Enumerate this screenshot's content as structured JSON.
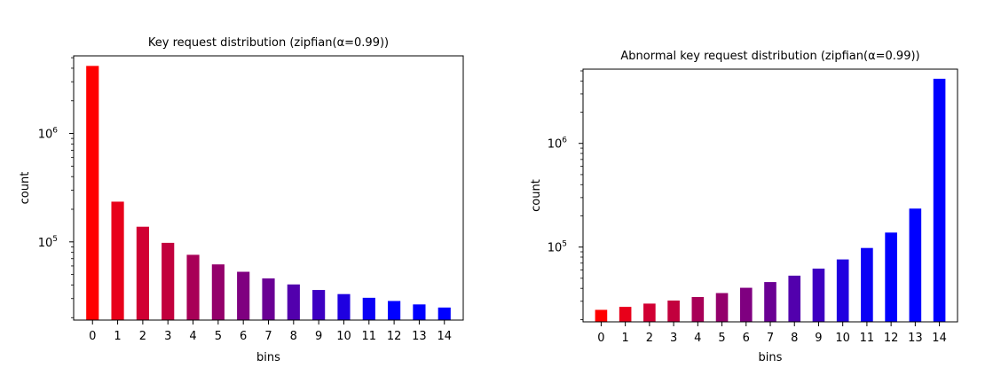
{
  "chart_data": [
    {
      "type": "bar",
      "title": "Key request distribution (zipfian(α=0.99))",
      "xlabel": "bins",
      "ylabel": "count",
      "yscale": "log",
      "ylim": [
        19000,
        5200000
      ],
      "grid": false,
      "categories": [
        "0",
        "1",
        "2",
        "3",
        "4",
        "5",
        "6",
        "7",
        "8",
        "9",
        "10",
        "11",
        "12",
        "13",
        "14"
      ],
      "values": [
        4200000,
        235000,
        138000,
        98000,
        76000,
        62000,
        53000,
        46000,
        40500,
        36000,
        33000,
        30500,
        28500,
        26500,
        24800
      ],
      "colors": [
        "#ff0000",
        "#e8001a",
        "#d10033",
        "#c2003d",
        "#a80057",
        "#94006b",
        "#7f0080",
        "#6a0094",
        "#5200ad",
        "#3d00c2",
        "#1f00e0",
        "#0a00f5",
        "#0000ff",
        "#0000ff",
        "#0000ff"
      ],
      "yticks": [
        {
          "base": "10",
          "exp": "5",
          "value": 100000
        },
        {
          "base": "10",
          "exp": "6",
          "value": 1000000
        }
      ]
    },
    {
      "type": "bar",
      "title": "Abnormal key request distribution (zipfian(α=0.99))",
      "xlabel": "bins",
      "ylabel": "count",
      "yscale": "log",
      "ylim": [
        19000,
        5200000
      ],
      "grid": false,
      "categories": [
        "0",
        "1",
        "2",
        "3",
        "4",
        "5",
        "6",
        "7",
        "8",
        "9",
        "10",
        "11",
        "12",
        "13",
        "14"
      ],
      "values": [
        24800,
        26500,
        28500,
        30500,
        33000,
        36000,
        40500,
        46000,
        53000,
        62000,
        76000,
        98000,
        138000,
        235000,
        4200000
      ],
      "colors": [
        "#ff0000",
        "#e8001a",
        "#d10033",
        "#c2003d",
        "#a80057",
        "#94006b",
        "#7f0080",
        "#6a0094",
        "#5200ad",
        "#3d00c2",
        "#1f00e0",
        "#0a00f5",
        "#0000ff",
        "#0000ff",
        "#0000ff"
      ],
      "yticks": [
        {
          "base": "10",
          "exp": "5",
          "value": 100000
        },
        {
          "base": "10",
          "exp": "6",
          "value": 1000000
        }
      ]
    }
  ]
}
